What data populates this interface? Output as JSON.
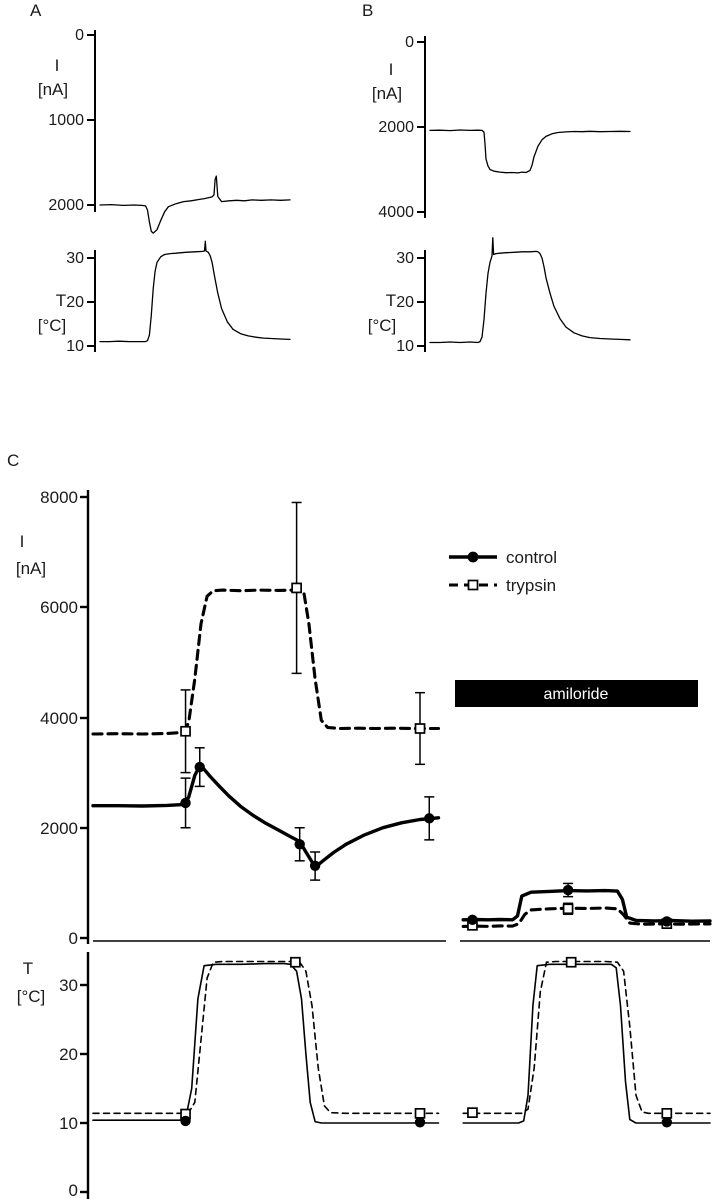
{
  "panels": {
    "a": {
      "label": "A"
    },
    "b": {
      "label": "B"
    },
    "c": {
      "label": "C"
    }
  },
  "colors": {
    "trace": "#000000",
    "background": "#ffffff",
    "annotation_bar": "#000000",
    "annotation_text": "#ffffff"
  },
  "chart_data": [
    {
      "id": "panel-a-current",
      "type": "line",
      "title": "",
      "xlabel": "",
      "ylabel": "I",
      "ylabel_unit": "[nA]",
      "y_unit": "nA",
      "yticks": [
        "0",
        "1000",
        "2000"
      ],
      "ylim": [
        0,
        2400
      ],
      "y_inverted": true,
      "series": [
        {
          "name": "current",
          "x": [
            0,
            6,
            12,
            18,
            22,
            24,
            25,
            26,
            27,
            28,
            30,
            32,
            34,
            36,
            40,
            44,
            48,
            52,
            55,
            57,
            59,
            60,
            60.6,
            61.2,
            62,
            64,
            68,
            72,
            76,
            80,
            85,
            90,
            95,
            100
          ],
          "y": [
            2000,
            1995,
            2005,
            2000,
            2005,
            2010,
            2060,
            2200,
            2310,
            2330,
            2290,
            2180,
            2080,
            2020,
            1985,
            1960,
            1950,
            1935,
            1925,
            1915,
            1905,
            1880,
            1700,
            1660,
            1900,
            1960,
            1950,
            1945,
            1950,
            1940,
            1945,
            1940,
            1945,
            1940
          ]
        }
      ]
    },
    {
      "id": "panel-a-temperature",
      "type": "line",
      "title": "",
      "xlabel": "",
      "ylabel": "T",
      "ylabel_unit": "[°C]",
      "y_unit": "°C",
      "yticks": [
        "30",
        "20",
        "10"
      ],
      "ylim": [
        10,
        30
      ],
      "series": [
        {
          "name": "temperature",
          "x": [
            0,
            5,
            10,
            15,
            20,
            24,
            25,
            26,
            27,
            28,
            29,
            30,
            32,
            34,
            37,
            40,
            45,
            50,
            54,
            55,
            55.4,
            55.8,
            57,
            58,
            59,
            60,
            62,
            64,
            67,
            70,
            74,
            78,
            82,
            86,
            90,
            95,
            100
          ],
          "y": [
            11,
            11,
            11.1,
            11,
            11,
            11,
            11.2,
            12.5,
            17,
            23,
            27,
            29,
            30.3,
            30.8,
            31,
            31.1,
            31.3,
            31.4,
            31.5,
            31.6,
            33.8,
            31.6,
            31.3,
            30.5,
            29,
            26.5,
            22,
            18.5,
            15.5,
            13.8,
            12.8,
            12.3,
            12,
            11.8,
            11.7,
            11.6,
            11.5
          ]
        }
      ]
    },
    {
      "id": "panel-b-current",
      "type": "line",
      "title": "",
      "xlabel": "",
      "ylabel": "I",
      "ylabel_unit": "[nA]",
      "y_unit": "nA",
      "yticks": [
        "0",
        "2000",
        "4000"
      ],
      "ylim": [
        0,
        4200
      ],
      "y_inverted": true,
      "series": [
        {
          "name": "current",
          "x": [
            0,
            5,
            10,
            15,
            20,
            24,
            26,
            27,
            27.5,
            28,
            29,
            30,
            32,
            35,
            38,
            41,
            44,
            46,
            48,
            50,
            51,
            52,
            54,
            56,
            58,
            61,
            64,
            68,
            72,
            76,
            80,
            85,
            90,
            95,
            100
          ],
          "y": [
            2080,
            2075,
            2085,
            2070,
            2080,
            2075,
            2080,
            2120,
            2400,
            2750,
            2920,
            3000,
            3040,
            3060,
            3075,
            3070,
            3080,
            3060,
            3070,
            3020,
            2900,
            2700,
            2450,
            2300,
            2220,
            2160,
            2130,
            2115,
            2105,
            2110,
            2100,
            2110,
            2105,
            2100,
            2105
          ]
        }
      ]
    },
    {
      "id": "panel-b-temperature",
      "type": "line",
      "title": "",
      "xlabel": "",
      "ylabel": "T",
      "ylabel_unit": "[°C]",
      "y_unit": "°C",
      "yticks": [
        "30",
        "20",
        "10"
      ],
      "ylim": [
        10,
        30
      ],
      "series": [
        {
          "name": "temperature",
          "x": [
            0,
            5,
            10,
            15,
            20,
            24,
            25,
            26,
            27,
            28,
            29,
            30,
            31,
            31.4,
            31.8,
            33,
            35,
            38,
            42,
            46,
            50,
            53,
            54,
            55,
            56,
            57,
            58,
            60,
            62,
            65,
            68,
            72,
            76,
            80,
            85,
            90,
            95,
            100
          ],
          "y": [
            10.8,
            10.8,
            10.9,
            10.8,
            10.9,
            10.8,
            11,
            12,
            16,
            22,
            26.5,
            29,
            30.5,
            34.6,
            30.8,
            31,
            31.1,
            31.2,
            31.3,
            31.4,
            31.4,
            31.5,
            31.4,
            31,
            30,
            28,
            25.5,
            22,
            19,
            16.2,
            14.3,
            13,
            12.3,
            11.9,
            11.7,
            11.6,
            11.5,
            11.4
          ]
        }
      ]
    },
    {
      "id": "panel-c-current",
      "type": "line",
      "title": "",
      "xlabel": "",
      "ylabel": "I",
      "ylabel_unit": "[nA]",
      "y_unit": "nA",
      "yticks": [
        "8000",
        "6000",
        "4000",
        "2000",
        "0"
      ],
      "ylim": [
        0,
        8000
      ],
      "legend": [
        {
          "label": "control"
        },
        {
          "label": "trypsin"
        }
      ],
      "annotations": [
        {
          "type": "bar",
          "label": "amiloride"
        }
      ],
      "series": [
        {
          "name": "trypsin",
          "line": "dashed",
          "marker": "square",
          "segments": [
            {
              "x": [
                0,
                4,
                8,
                12,
                14.5,
                15.5,
                16.5,
                17.5,
                18.5,
                19.5,
                21,
                24,
                27,
                30,
                32.5,
                33.5,
                34.2,
                35,
                36,
                37,
                38,
                40,
                43,
                46,
                49,
                52,
                56
              ],
              "y": [
                3700,
                3705,
                3700,
                3710,
                3730,
                3900,
                4700,
                5700,
                6200,
                6300,
                6310,
                6300,
                6310,
                6305,
                6310,
                6320,
                6250,
                5700,
                4700,
                3950,
                3820,
                3800,
                3805,
                3800,
                3805,
                3800,
                3800
              ]
            },
            {
              "x": [
                60,
                62,
                64,
                66,
                68,
                69,
                70,
                71,
                74,
                77,
                80,
                83,
                85,
                86,
                87,
                89,
                92,
                95,
                100
              ],
              "y": [
                210,
                215,
                210,
                220,
                215,
                260,
                430,
                510,
                530,
                540,
                535,
                545,
                530,
                420,
                270,
                250,
                255,
                250,
                255
              ]
            }
          ],
          "points": [
            {
              "x": 15,
              "y": 3750,
              "lo": 3000,
              "hi": 4500
            },
            {
              "x": 33,
              "y": 6350,
              "lo": 4800,
              "hi": 7900
            },
            {
              "x": 53,
              "y": 3800,
              "lo": 3150,
              "hi": 4450
            },
            {
              "x": 61.5,
              "y": 230
            },
            {
              "x": 77,
              "y": 530,
              "lo": 430,
              "hi": 630
            },
            {
              "x": 93,
              "y": 260
            }
          ]
        },
        {
          "name": "control",
          "line": "solid",
          "marker": "circle",
          "segments": [
            {
              "x": [
                0,
                4,
                8,
                12,
                14.5,
                15.5,
                16.5,
                17.3,
                18,
                19,
                20.5,
                22,
                24,
                26,
                28,
                30,
                32,
                33.5,
                34.5,
                35.5,
                36,
                36.5,
                37.5,
                39,
                41,
                44,
                47,
                50,
                53,
                56
              ],
              "y": [
                2400,
                2400,
                2395,
                2405,
                2420,
                2550,
                2950,
                3120,
                3060,
                2930,
                2750,
                2580,
                2380,
                2220,
                2080,
                1960,
                1840,
                1750,
                1560,
                1380,
                1310,
                1330,
                1420,
                1550,
                1700,
                1870,
                2000,
                2090,
                2150,
                2180
              ]
            },
            {
              "x": [
                60,
                62,
                64,
                66,
                68,
                68.8,
                69.5,
                71,
                74,
                77,
                80,
                83,
                85,
                85.8,
                86.5,
                88,
                91,
                94,
                97,
                100
              ],
              "y": [
                330,
                335,
                330,
                335,
                330,
                400,
                760,
                830,
                845,
                860,
                855,
                860,
                850,
                700,
                380,
                320,
                310,
                315,
                305,
                310
              ]
            }
          ],
          "points": [
            {
              "x": 15,
              "y": 2450,
              "lo": 2000,
              "hi": 2900
            },
            {
              "x": 17.3,
              "y": 3100,
              "lo": 2750,
              "hi": 3450
            },
            {
              "x": 33.5,
              "y": 1700,
              "lo": 1400,
              "hi": 2000
            },
            {
              "x": 36,
              "y": 1310,
              "lo": 1050,
              "hi": 1560
            },
            {
              "x": 54.5,
              "y": 2170,
              "lo": 1780,
              "hi": 2560
            },
            {
              "x": 61.5,
              "y": 330
            },
            {
              "x": 77,
              "y": 870,
              "lo": 750,
              "hi": 990
            },
            {
              "x": 93,
              "y": 300
            }
          ]
        }
      ]
    },
    {
      "id": "panel-c-temperature",
      "type": "line",
      "title": "",
      "xlabel": "",
      "ylabel": "T",
      "ylabel_unit": "[°C]",
      "y_unit": "°C",
      "yticks": [
        "30",
        "20",
        "10",
        "0"
      ],
      "ylim": [
        0,
        35
      ],
      "series": [
        {
          "name": "trypsin-temperature",
          "line": "dashed",
          "marker": "square",
          "segments": [
            {
              "x": [
                0,
                5,
                10,
                14,
                15.5,
                16.5,
                17.5,
                18.5,
                19.5,
                21,
                25,
                29,
                32,
                33.5,
                34.5,
                35.5,
                36.5,
                37.5,
                38.5,
                41,
                45,
                49,
                53,
                56
              ],
              "y": [
                11.4,
                11.4,
                11.4,
                11.4,
                11.5,
                13,
                22,
                31,
                33.3,
                33.4,
                33.4,
                33.4,
                33.4,
                33.3,
                32,
                27,
                18,
                12.5,
                11.5,
                11.4,
                11.4,
                11.4,
                11.4,
                11.4
              ]
            },
            {
              "x": [
                60,
                63,
                66,
                69.5,
                70.5,
                71.5,
                72.5,
                73.5,
                75,
                79,
                83,
                85,
                86,
                87,
                88,
                89,
                90,
                93,
                96,
                100
              ],
              "y": [
                11.4,
                11.4,
                11.4,
                11.4,
                12,
                18,
                29,
                33.3,
                33.4,
                33.4,
                33.4,
                33.3,
                32,
                24,
                14,
                11.6,
                11.4,
                11.4,
                11.4,
                11.4
              ]
            }
          ],
          "points": [
            {
              "x": 15,
              "y": 11.3
            },
            {
              "x": 32.8,
              "y": 33.3
            },
            {
              "x": 53,
              "y": 11.4
            },
            {
              "x": 61.5,
              "y": 11.5
            },
            {
              "x": 77.5,
              "y": 33.3
            },
            {
              "x": 93,
              "y": 11.4
            }
          ]
        },
        {
          "name": "control-temperature",
          "line": "solid",
          "marker": "circle",
          "segments": [
            {
              "x": [
                0,
                5,
                10,
                14,
                15,
                16,
                17,
                18,
                20,
                24,
                28,
                31,
                32,
                33,
                33.8,
                34.5,
                35.2,
                36,
                37,
                40,
                44,
                48,
                52,
                56
              ],
              "y": [
                10.4,
                10.4,
                10.4,
                10.4,
                10.6,
                15,
                28,
                32.8,
                33,
                33,
                33.1,
                33.1,
                33,
                32,
                28,
                20,
                13,
                10.2,
                10,
                10,
                10,
                10,
                10,
                10
              ]
            },
            {
              "x": [
                60,
                63,
                66,
                69,
                69.8,
                70.5,
                71.3,
                72,
                74,
                78,
                82,
                84,
                84.8,
                85.5,
                86.3,
                87,
                88,
                91,
                95,
                100
              ],
              "y": [
                10,
                10,
                10,
                10,
                10.3,
                14,
                27,
                32.8,
                33,
                33,
                33,
                33,
                32.5,
                27,
                16,
                10.5,
                10,
                10,
                10,
                10
              ]
            }
          ],
          "points": [
            {
              "x": 15,
              "y": 10.3
            },
            {
              "x": 53,
              "y": 10.1
            },
            {
              "x": 93,
              "y": 10.1
            }
          ]
        }
      ]
    }
  ]
}
